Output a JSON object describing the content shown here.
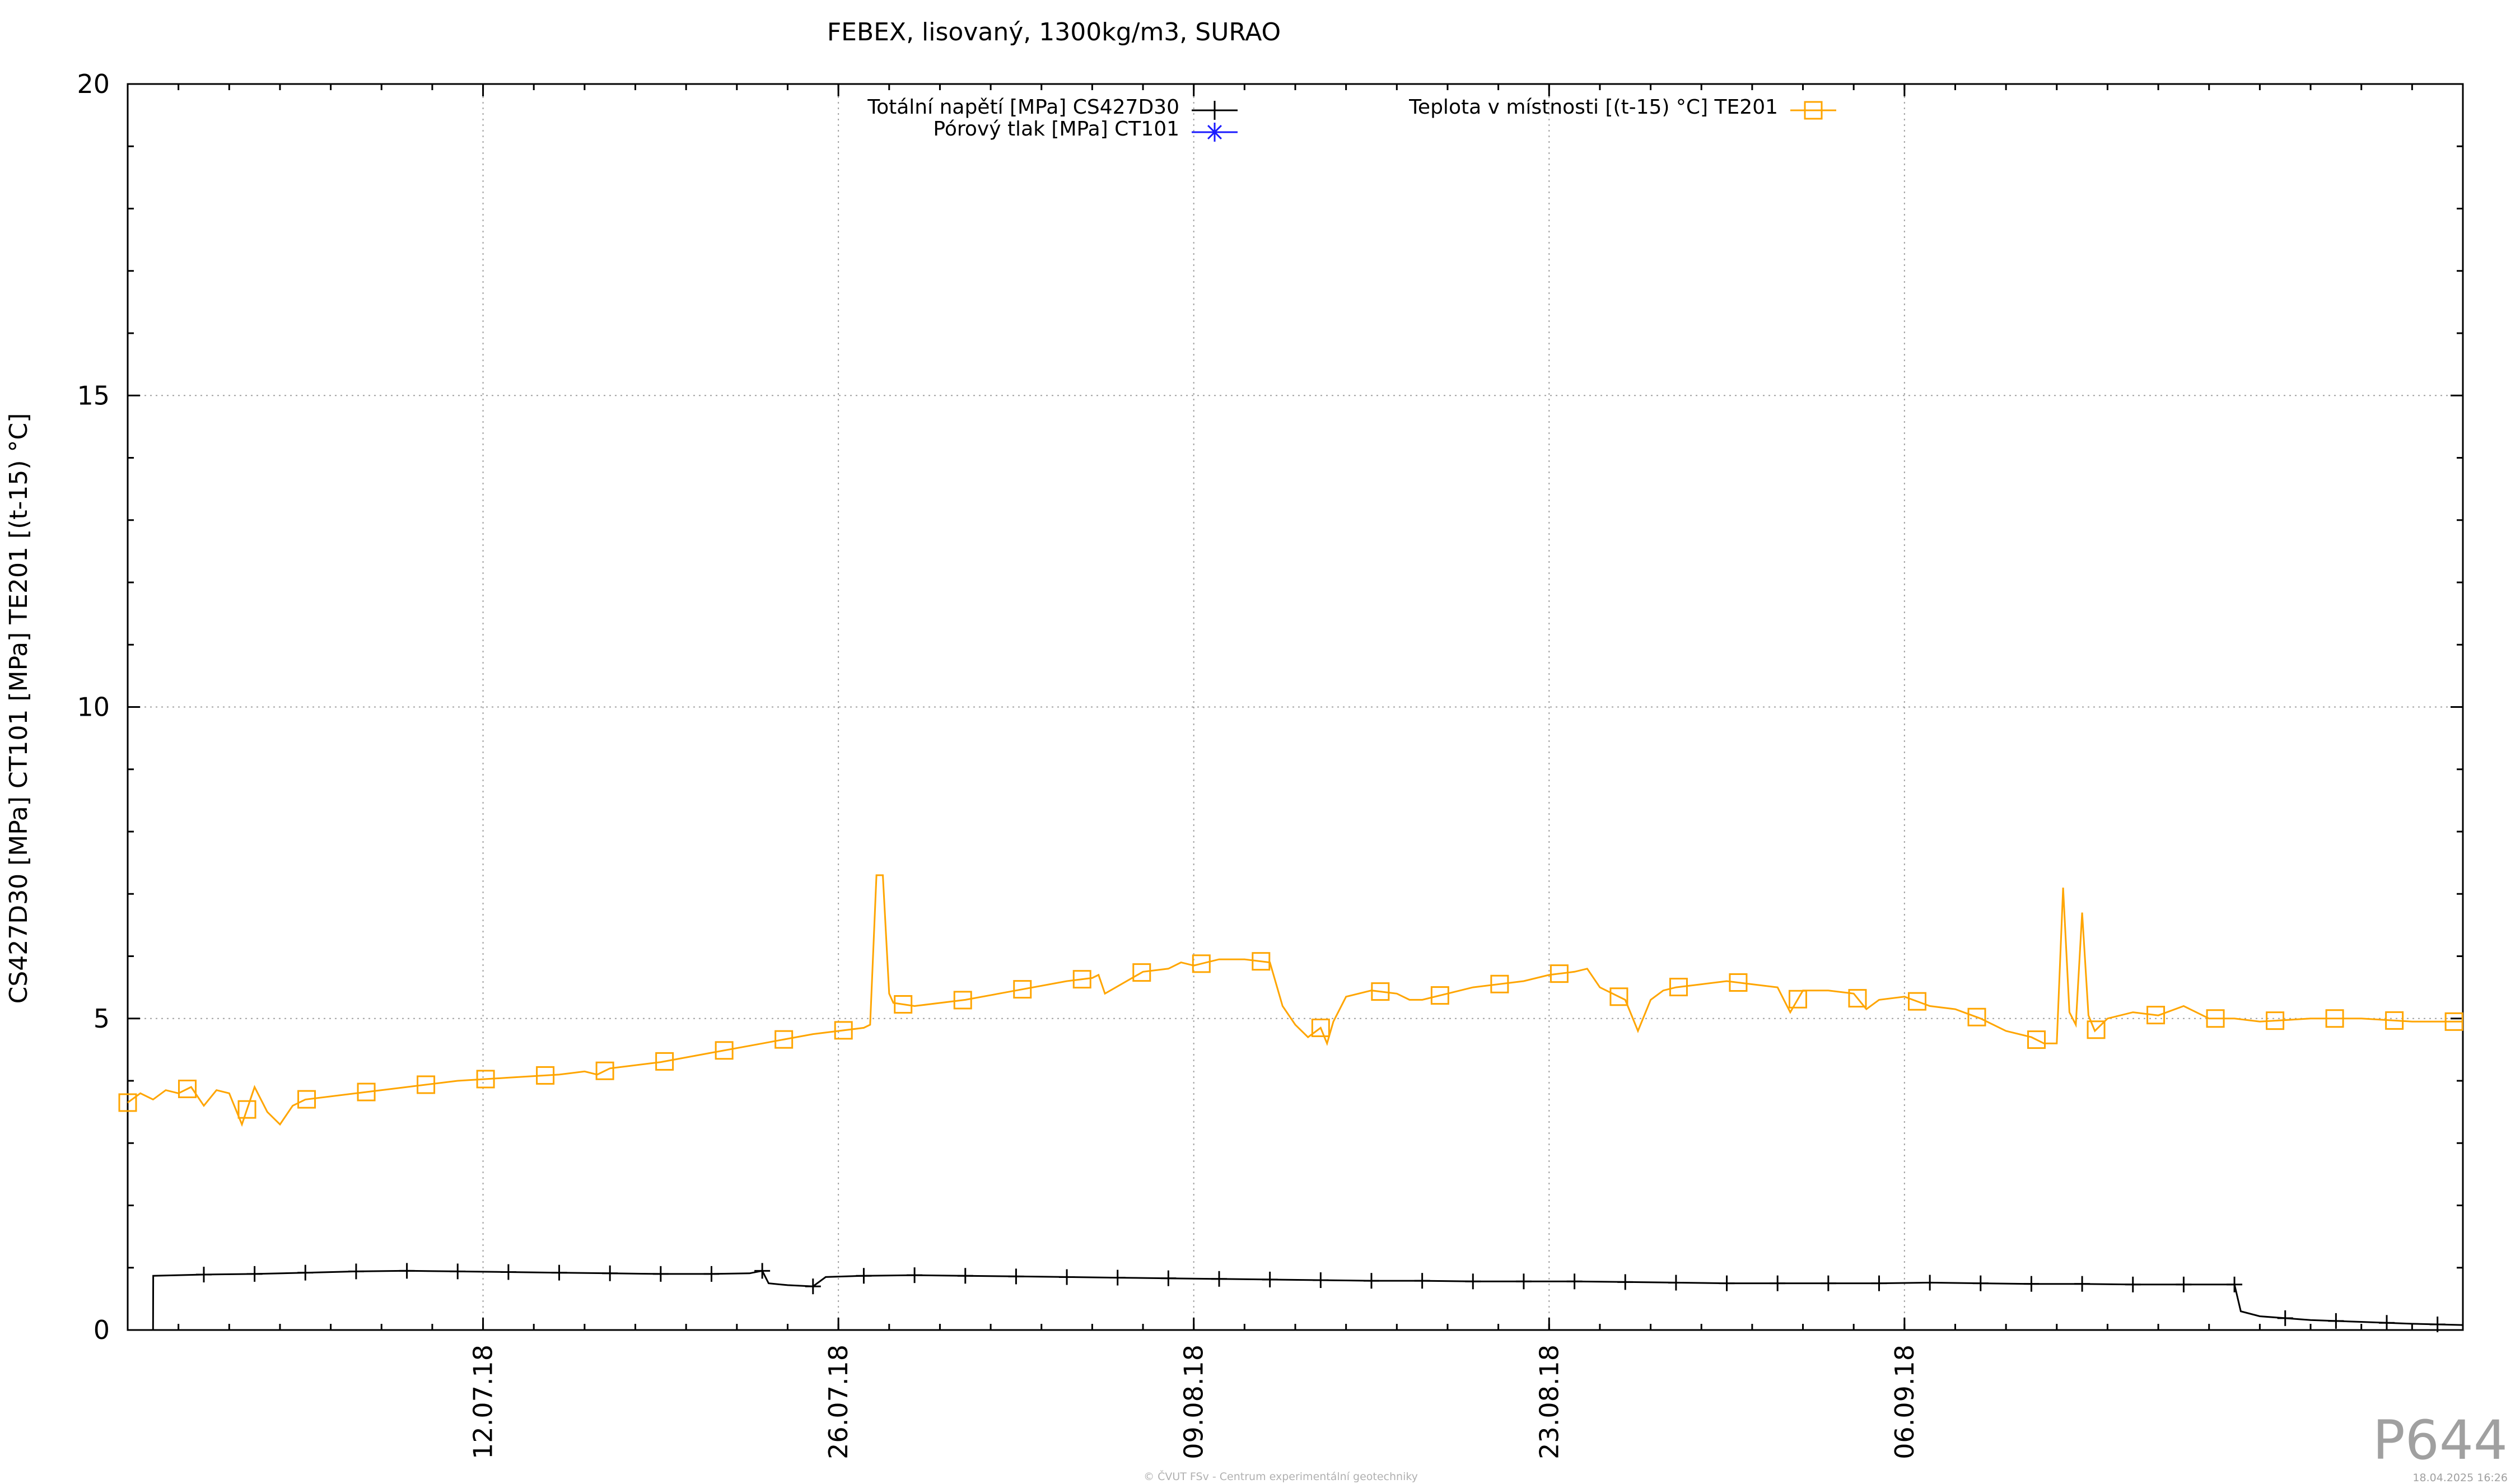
{
  "chart_data": {
    "type": "line",
    "title": "FEBEX, lisovaný, 1300kg/m3, SURAO",
    "ylabel": "CS427D30 [MPa] CT101 [MPa] TE201 [(t-15) °C]",
    "xlabel": "",
    "ylim": [
      0,
      20
    ],
    "xlim": [
      "2018-06-28",
      "2018-09-28"
    ],
    "y_ticks": [
      "0",
      "5",
      "10",
      "15",
      "20"
    ],
    "x_ticks": [
      {
        "date": "2018-07-12",
        "label": "12.07.18"
      },
      {
        "date": "2018-07-26",
        "label": "26.07.18"
      },
      {
        "date": "2018-08-09",
        "label": "09.08.18"
      },
      {
        "date": "2018-08-23",
        "label": "23.08.18"
      },
      {
        "date": "2018-09-06",
        "label": "06.09.18"
      }
    ],
    "grid": true,
    "legend_position": "top",
    "series": [
      {
        "name": "Totální napětí [MPa] CS427D30",
        "color": "#000000",
        "marker": "plus",
        "x": [
          "2018-06-29T00:00",
          "2018-06-29T00:10",
          "2018-07-01",
          "2018-07-03",
          "2018-07-05",
          "2018-07-07",
          "2018-07-09",
          "2018-07-11",
          "2018-07-13",
          "2018-07-15",
          "2018-07-17",
          "2018-07-19",
          "2018-07-21",
          "2018-07-22T12:00",
          "2018-07-23",
          "2018-07-23T06:00",
          "2018-07-24",
          "2018-07-25",
          "2018-07-25T12:00",
          "2018-07-27",
          "2018-07-29",
          "2018-07-31",
          "2018-08-02",
          "2018-08-04",
          "2018-08-06",
          "2018-08-08",
          "2018-08-10",
          "2018-08-12",
          "2018-08-14",
          "2018-08-16",
          "2018-08-18",
          "2018-08-20",
          "2018-08-22",
          "2018-08-24",
          "2018-08-26",
          "2018-08-28",
          "2018-08-30",
          "2018-09-01",
          "2018-09-03",
          "2018-09-05",
          "2018-09-07",
          "2018-09-09",
          "2018-09-11",
          "2018-09-13",
          "2018-09-15",
          "2018-09-17",
          "2018-09-19",
          "2018-09-19T06:00",
          "2018-09-20",
          "2018-09-22",
          "2018-09-24",
          "2018-09-26",
          "2018-09-28"
        ],
        "y": [
          0,
          0.87,
          0.89,
          0.9,
          0.92,
          0.94,
          0.95,
          0.94,
          0.93,
          0.92,
          0.91,
          0.9,
          0.9,
          0.91,
          0.95,
          0.75,
          0.72,
          0.7,
          0.85,
          0.87,
          0.88,
          0.87,
          0.86,
          0.85,
          0.84,
          0.83,
          0.82,
          0.81,
          0.8,
          0.79,
          0.79,
          0.78,
          0.78,
          0.78,
          0.77,
          0.76,
          0.75,
          0.75,
          0.75,
          0.75,
          0.76,
          0.75,
          0.74,
          0.74,
          0.73,
          0.73,
          0.73,
          0.3,
          0.22,
          0.16,
          0.13,
          0.1,
          0.08
        ]
      },
      {
        "name": "Pórový tlak [MPa] CT101",
        "color": "#1a1aff",
        "marker": "star",
        "x": [],
        "y": []
      },
      {
        "name": "Teplota v místnosti [(t-15) °C] TE201",
        "color": "#ffa500",
        "marker": "square",
        "x": [
          "2018-06-28",
          "2018-06-28T12:00",
          "2018-06-29",
          "2018-06-29T12:00",
          "2018-06-30",
          "2018-06-30T12:00",
          "2018-07-01",
          "2018-07-01T12:00",
          "2018-07-02",
          "2018-07-02T12:00",
          "2018-07-03",
          "2018-07-03T12:00",
          "2018-07-04",
          "2018-07-04T12:00",
          "2018-07-05",
          "2018-07-07",
          "2018-07-09",
          "2018-07-11",
          "2018-07-13",
          "2018-07-15",
          "2018-07-16",
          "2018-07-16T12:00",
          "2018-07-17",
          "2018-07-19",
          "2018-07-21",
          "2018-07-23",
          "2018-07-25",
          "2018-07-27",
          "2018-07-27T06:00",
          "2018-07-27T12:00",
          "2018-07-27T18:00",
          "2018-07-28",
          "2018-07-28T04:00",
          "2018-07-29",
          "2018-07-31",
          "2018-08-02",
          "2018-08-04",
          "2018-08-05",
          "2018-08-05T06:00",
          "2018-08-05T12:00",
          "2018-08-07",
          "2018-08-08",
          "2018-08-08T12:00",
          "2018-08-09",
          "2018-08-10",
          "2018-08-11",
          "2018-08-12",
          "2018-08-12T12:00",
          "2018-08-13",
          "2018-08-13T12:00",
          "2018-08-14",
          "2018-08-14T06:00",
          "2018-08-14T12:00",
          "2018-08-15",
          "2018-08-16",
          "2018-08-17",
          "2018-08-17T12:00",
          "2018-08-18",
          "2018-08-20",
          "2018-08-22",
          "2018-08-23",
          "2018-08-24",
          "2018-08-24T12:00",
          "2018-08-25",
          "2018-08-26",
          "2018-08-26T12:00",
          "2018-08-27",
          "2018-08-27T12:00",
          "2018-08-28",
          "2018-08-29",
          "2018-08-30",
          "2018-08-31",
          "2018-09-01",
          "2018-09-01T06:00",
          "2018-09-01T12:00",
          "2018-09-02",
          "2018-09-03",
          "2018-09-04",
          "2018-09-04T12:00",
          "2018-09-05",
          "2018-09-06",
          "2018-09-07",
          "2018-09-08",
          "2018-09-09",
          "2018-09-10",
          "2018-09-11",
          "2018-09-11T12:00",
          "2018-09-12",
          "2018-09-12T06:00",
          "2018-09-12T12:00",
          "2018-09-12T18:00",
          "2018-09-13",
          "2018-09-13T06:00",
          "2018-09-13T12:00",
          "2018-09-14",
          "2018-09-15",
          "2018-09-16",
          "2018-09-17",
          "2018-09-18",
          "2018-09-19",
          "2018-09-20",
          "2018-09-22",
          "2018-09-24",
          "2018-09-26",
          "2018-09-28"
        ],
        "y": [
          3.65,
          3.8,
          3.7,
          3.85,
          3.8,
          3.9,
          3.6,
          3.85,
          3.8,
          3.3,
          3.9,
          3.5,
          3.3,
          3.6,
          3.7,
          3.8,
          3.9,
          4.0,
          4.05,
          4.1,
          4.15,
          4.1,
          4.2,
          4.3,
          4.45,
          4.6,
          4.75,
          4.85,
          4.9,
          7.3,
          7.3,
          5.4,
          5.25,
          5.2,
          5.3,
          5.45,
          5.6,
          5.65,
          5.7,
          5.4,
          5.75,
          5.8,
          5.9,
          5.85,
          5.95,
          5.95,
          5.9,
          5.2,
          4.9,
          4.7,
          4.85,
          4.6,
          4.95,
          5.35,
          5.45,
          5.4,
          5.3,
          5.3,
          5.5,
          5.6,
          5.7,
          5.75,
          5.8,
          5.5,
          5.3,
          4.8,
          5.3,
          5.45,
          5.5,
          5.55,
          5.6,
          5.55,
          5.5,
          5.3,
          5.1,
          5.45,
          5.45,
          5.4,
          5.15,
          5.3,
          5.35,
          5.2,
          5.15,
          5.0,
          4.8,
          4.7,
          4.6,
          4.6,
          7.1,
          5.1,
          4.9,
          6.7,
          5.05,
          4.8,
          5.0,
          5.1,
          5.05,
          5.2,
          5.0,
          5.0,
          4.95,
          5.0,
          5.0,
          4.95,
          4.95
        ]
      }
    ]
  },
  "watermark": "P644",
  "footer_center": "© ČVUT FSv - Centrum experimentální geotechniky",
  "footer_date": "18.04.2025 16:26"
}
